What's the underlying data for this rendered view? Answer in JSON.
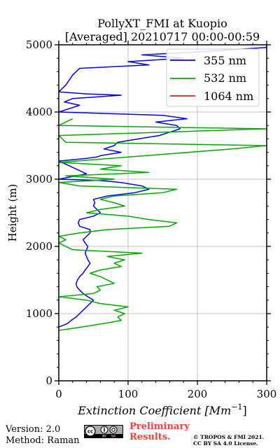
{
  "chart_data": {
    "type": "line",
    "title": "PollyXT_FMI at Kuopio",
    "subtitle": "[Averaged] 20210717 00:00-00:59",
    "xlabel": "Extinction Coefficient [Mm",
    "xlabel_sup": "−1",
    "xlabel_end": "]",
    "ylabel": "Height (m)",
    "xlim": [
      0,
      300
    ],
    "ylim": [
      0,
      5000
    ],
    "xticks": [
      0,
      100,
      200,
      300
    ],
    "yticks": [
      0,
      1000,
      2000,
      3000,
      4000,
      5000
    ],
    "grid": true,
    "legend_position": "top-right",
    "series": [
      {
        "name": "355 nm",
        "color": "#0000ff",
        "points": [
          [
            0,
            800
          ],
          [
            12,
            850
          ],
          [
            18,
            900
          ],
          [
            25,
            950
          ],
          [
            30,
            1000
          ],
          [
            35,
            1050
          ],
          [
            40,
            1100
          ],
          [
            45,
            1150
          ],
          [
            50,
            1200
          ],
          [
            42,
            1250
          ],
          [
            35,
            1300
          ],
          [
            30,
            1350
          ],
          [
            26,
            1400
          ],
          [
            25,
            1450
          ],
          [
            27,
            1500
          ],
          [
            30,
            1550
          ],
          [
            35,
            1600
          ],
          [
            38,
            1650
          ],
          [
            42,
            1700
          ],
          [
            45,
            1750
          ],
          [
            42,
            1800
          ],
          [
            40,
            1850
          ],
          [
            38,
            1900
          ],
          [
            40,
            1950
          ],
          [
            42,
            2000
          ],
          [
            38,
            2050
          ],
          [
            35,
            2100
          ],
          [
            40,
            2150
          ],
          [
            45,
            2200
          ],
          [
            45,
            2250
          ],
          [
            30,
            2300
          ],
          [
            28,
            2350
          ],
          [
            30,
            2400
          ],
          [
            50,
            2450
          ],
          [
            60,
            2500
          ],
          [
            55,
            2550
          ],
          [
            50,
            2600
          ],
          [
            52,
            2650
          ],
          [
            50,
            2700
          ],
          [
            70,
            2750
          ],
          [
            110,
            2800
          ],
          [
            130,
            2850
          ],
          [
            120,
            2900
          ],
          [
            90,
            2950
          ],
          [
            60,
            2980
          ],
          [
            0,
            3000
          ],
          [
            40,
            3080
          ],
          [
            15,
            3200
          ],
          [
            0,
            3270
          ],
          [
            40,
            3310
          ],
          [
            55,
            3330
          ],
          [
            60,
            3350
          ],
          [
            90,
            3400
          ],
          [
            65,
            3450
          ],
          [
            80,
            3500
          ],
          [
            85,
            3550
          ],
          [
            115,
            3600
          ],
          [
            145,
            3650
          ],
          [
            160,
            3700
          ],
          [
            175,
            3750
          ],
          [
            170,
            3800
          ],
          [
            140,
            3850
          ],
          [
            185,
            3900
          ],
          [
            150,
            3950
          ],
          [
            0,
            4000
          ],
          [
            30,
            4100
          ],
          [
            8,
            4150
          ],
          [
            20,
            4200
          ],
          [
            90,
            4250
          ],
          [
            40,
            4270
          ],
          [
            0,
            4300
          ],
          [
            10,
            4400
          ],
          [
            20,
            4550
          ],
          [
            30,
            4650
          ],
          [
            130,
            4700
          ],
          [
            100,
            4750
          ],
          [
            180,
            4800
          ],
          [
            120,
            4850
          ],
          [
            210,
            4900
          ],
          [
            300,
            4960
          ],
          [
            300,
            5000
          ]
        ]
      },
      {
        "name": "532 nm",
        "color": "#00aa00",
        "points": [
          [
            0,
            750
          ],
          [
            20,
            780
          ],
          [
            45,
            820
          ],
          [
            70,
            860
          ],
          [
            90,
            900
          ],
          [
            85,
            950
          ],
          [
            95,
            1000
          ],
          [
            80,
            1050
          ],
          [
            100,
            1100
          ],
          [
            60,
            1150
          ],
          [
            40,
            1200
          ],
          [
            0,
            1250
          ],
          [
            50,
            1300
          ],
          [
            60,
            1350
          ],
          [
            55,
            1400
          ],
          [
            80,
            1450
          ],
          [
            70,
            1500
          ],
          [
            60,
            1550
          ],
          [
            45,
            1600
          ],
          [
            60,
            1650
          ],
          [
            90,
            1700
          ],
          [
            80,
            1750
          ],
          [
            95,
            1800
          ],
          [
            70,
            1850
          ],
          [
            120,
            1900
          ],
          [
            20,
            1950
          ],
          [
            0,
            2050
          ],
          [
            10,
            2100
          ],
          [
            0,
            2150
          ],
          [
            30,
            2200
          ],
          [
            70,
            2250
          ],
          [
            160,
            2300
          ],
          [
            170,
            2350
          ],
          [
            130,
            2400
          ],
          [
            100,
            2450
          ],
          [
            40,
            2500
          ],
          [
            60,
            2550
          ],
          [
            95,
            2600
          ],
          [
            80,
            2650
          ],
          [
            60,
            2700
          ],
          [
            80,
            2750
          ],
          [
            150,
            2800
          ],
          [
            170,
            2850
          ],
          [
            30,
            2900
          ],
          [
            0,
            2950
          ],
          [
            80,
            3000
          ],
          [
            10,
            3050
          ],
          [
            130,
            3100
          ],
          [
            60,
            3150
          ],
          [
            90,
            3200
          ],
          [
            0,
            3250
          ],
          [
            250,
            3450
          ],
          [
            300,
            3500
          ],
          [
            10,
            3550
          ],
          [
            0,
            3650
          ],
          [
            300,
            3750
          ],
          [
            0,
            3800
          ],
          [
            20,
            3900
          ]
        ]
      },
      {
        "name": "1064 nm",
        "color": "#dd1c1c",
        "points": []
      }
    ]
  },
  "footer": {
    "version": "Version: 2.0",
    "method": "Method: Raman",
    "preliminary_line1": "Preliminary",
    "preliminary_line2": "Results.",
    "copyright_line1": "© TROPOS & FMI 2021.",
    "copyright_line2": "CC BY SA 4.0 License.",
    "cc_badge": {
      "icon": "cc-by-sa-badge",
      "label_by": "BY",
      "label_sa": "SA"
    }
  }
}
